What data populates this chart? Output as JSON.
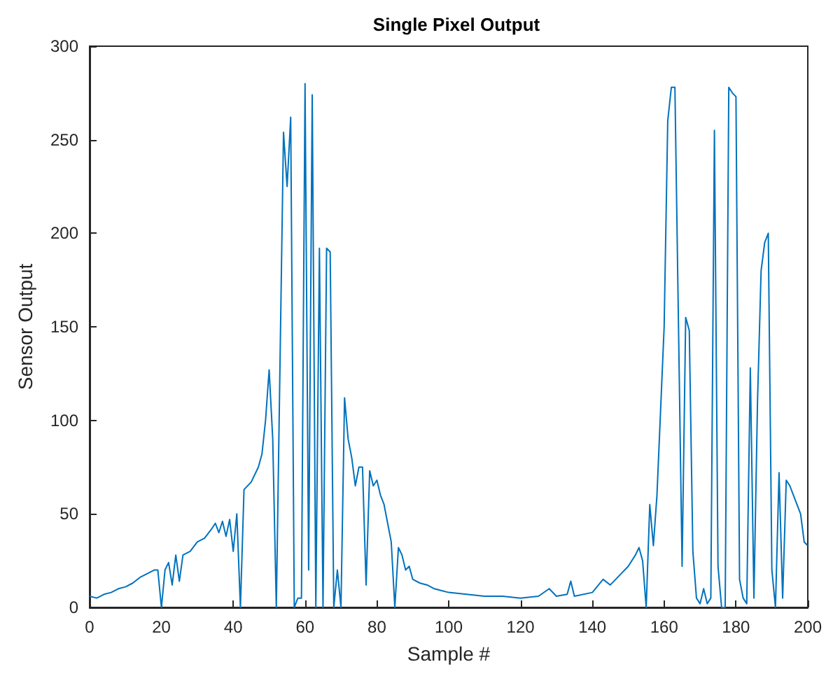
{
  "chart_data": {
    "type": "line",
    "title": "Single Pixel Output",
    "xlabel": "Sample #",
    "ylabel": "Sensor Output",
    "xlim": [
      0,
      200
    ],
    "xticks": [
      0,
      20,
      40,
      60,
      80,
      100,
      120,
      140,
      160,
      180,
      200
    ],
    "ylim": [
      0,
      300
    ],
    "yticks": [
      0,
      50,
      100,
      150,
      200,
      250,
      300
    ],
    "grid": false,
    "marker": "none",
    "series": [
      {
        "color": "#0072bd",
        "x": [
          0,
          2,
          4,
          6,
          8,
          10,
          12,
          14,
          16,
          18,
          19,
          20,
          21,
          22,
          23,
          24,
          25,
          26,
          28,
          30,
          32,
          34,
          35,
          36,
          37,
          38,
          39,
          40,
          41,
          42,
          43,
          45,
          47,
          48,
          49,
          50,
          51,
          52,
          54,
          55,
          56,
          57,
          58,
          59,
          60,
          61,
          62,
          63,
          64,
          65,
          66,
          67,
          68,
          69,
          70,
          71,
          72,
          73,
          74,
          75,
          76,
          77,
          78,
          79,
          80,
          81,
          82,
          83,
          84,
          85,
          86,
          87,
          88,
          89,
          90,
          92,
          94,
          96,
          98,
          100,
          105,
          110,
          115,
          120,
          125,
          128,
          130,
          133,
          134,
          135,
          140,
          143,
          145,
          148,
          150,
          152,
          153,
          154,
          155,
          156,
          157,
          158,
          160,
          161,
          162,
          163,
          164,
          165,
          166,
          167,
          168,
          169,
          170,
          171,
          172,
          173,
          174,
          175,
          176,
          177,
          178,
          179,
          180,
          181,
          182,
          183,
          184,
          185,
          186,
          187,
          188,
          189,
          190,
          191,
          192,
          193,
          194,
          195,
          196,
          198,
          199,
          200
        ],
        "values": [
          6,
          5,
          7,
          8,
          10,
          11,
          13,
          16,
          18,
          20,
          20,
          0,
          20,
          24,
          12,
          28,
          14,
          28,
          30,
          35,
          37,
          42,
          45,
          40,
          46,
          38,
          47,
          30,
          50,
          0,
          63,
          67,
          75,
          82,
          100,
          127,
          90,
          0,
          254,
          225,
          262,
          0,
          5,
          5,
          280,
          20,
          274,
          0,
          192,
          0,
          192,
          190,
          0,
          20,
          0,
          112,
          90,
          80,
          65,
          75,
          75,
          12,
          73,
          65,
          68,
          60,
          55,
          45,
          35,
          0,
          32,
          28,
          20,
          22,
          15,
          13,
          12,
          10,
          9,
          8,
          7,
          6,
          6,
          5,
          6,
          10,
          6,
          7,
          14,
          6,
          8,
          15,
          12,
          18,
          22,
          28,
          32,
          25,
          0,
          55,
          33,
          60,
          150,
          260,
          278,
          278,
          150,
          22,
          155,
          148,
          30,
          5,
          2,
          10,
          2,
          5,
          255,
          22,
          0,
          0,
          278,
          275,
          273,
          15,
          5,
          2,
          128,
          5,
          110,
          180,
          195,
          200,
          20,
          0,
          72,
          5,
          68,
          65,
          60,
          50,
          35,
          33
        ]
      }
    ]
  }
}
